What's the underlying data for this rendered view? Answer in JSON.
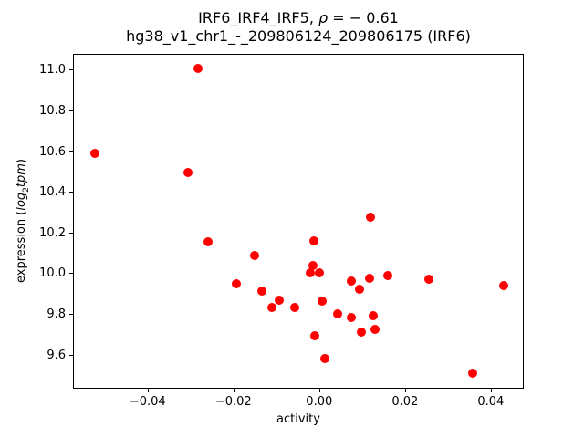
{
  "figure": {
    "title_line1": {
      "prefix": "IRF6_IRF4_IRF5, ",
      "rho": "ρ",
      "suffix": " = − 0.61"
    },
    "title_line2": "hg38_v1_chr1_-_209806124_209806175 (IRF6)",
    "xlabel": "activity",
    "ylabel": {
      "prefix": "expression (",
      "log_word": "log",
      "log_sub": "2",
      "tpm_word": "tpm",
      "suffix": ")"
    }
  },
  "chart_data": {
    "type": "scatter",
    "title": "IRF6_IRF4_IRF5, ρ = −0.61\nhg38_v1_chr1_-_209806124_209806175 (IRF6)",
    "xlabel": "activity",
    "ylabel": "expression (log2 tpm)",
    "marker_color": "#ff0000",
    "marker_shape": "circle",
    "grid": false,
    "legend": false,
    "xlim": [
      -0.0574,
      0.0477
    ],
    "ylim": [
      9.432,
      11.078
    ],
    "x_ticks": [
      {
        "value": -0.04,
        "label": "−0.04"
      },
      {
        "value": -0.02,
        "label": "−0.02"
      },
      {
        "value": 0.0,
        "label": "0.00"
      },
      {
        "value": 0.02,
        "label": "0.02"
      },
      {
        "value": 0.04,
        "label": "0.04"
      }
    ],
    "y_ticks": [
      {
        "value": 9.6,
        "label": "9.6"
      },
      {
        "value": 9.8,
        "label": "9.8"
      },
      {
        "value": 10.0,
        "label": "10.0"
      },
      {
        "value": 10.2,
        "label": "10.2"
      },
      {
        "value": 10.4,
        "label": "10.4"
      },
      {
        "value": 10.6,
        "label": "10.6"
      },
      {
        "value": 10.8,
        "label": "10.8"
      },
      {
        "value": 11.0,
        "label": "11.0"
      }
    ],
    "points": [
      {
        "x": -0.0283,
        "y": 11.006
      },
      {
        "x": -0.0524,
        "y": 10.589
      },
      {
        "x": -0.0306,
        "y": 10.493
      },
      {
        "x": 0.012,
        "y": 10.274
      },
      {
        "x": -0.0013,
        "y": 10.157
      },
      {
        "x": -0.0259,
        "y": 10.153
      },
      {
        "x": -0.0151,
        "y": 10.086
      },
      {
        "x": -0.0014,
        "y": 10.038
      },
      {
        "x": 0.0,
        "y": 10.001
      },
      {
        "x": -0.0021,
        "y": 10.0
      },
      {
        "x": 0.0159,
        "y": 9.989
      },
      {
        "x": 0.0117,
        "y": 9.975
      },
      {
        "x": 0.0255,
        "y": 9.969
      },
      {
        "x": 0.0075,
        "y": 9.962
      },
      {
        "x": -0.0193,
        "y": 9.947
      },
      {
        "x": 0.0431,
        "y": 9.937
      },
      {
        "x": 0.0094,
        "y": 9.919
      },
      {
        "x": -0.0134,
        "y": 9.91
      },
      {
        "x": -0.0093,
        "y": 9.869
      },
      {
        "x": 0.0007,
        "y": 9.864
      },
      {
        "x": -0.011,
        "y": 9.831
      },
      {
        "x": -0.0057,
        "y": 9.83
      },
      {
        "x": 0.0042,
        "y": 9.799
      },
      {
        "x": 0.0126,
        "y": 9.79
      },
      {
        "x": 0.0074,
        "y": 9.783
      },
      {
        "x": 0.0131,
        "y": 9.725
      },
      {
        "x": 0.0099,
        "y": 9.71
      },
      {
        "x": -0.001,
        "y": 9.694
      },
      {
        "x": 0.0014,
        "y": 9.581
      },
      {
        "x": 0.0358,
        "y": 9.507
      }
    ]
  }
}
